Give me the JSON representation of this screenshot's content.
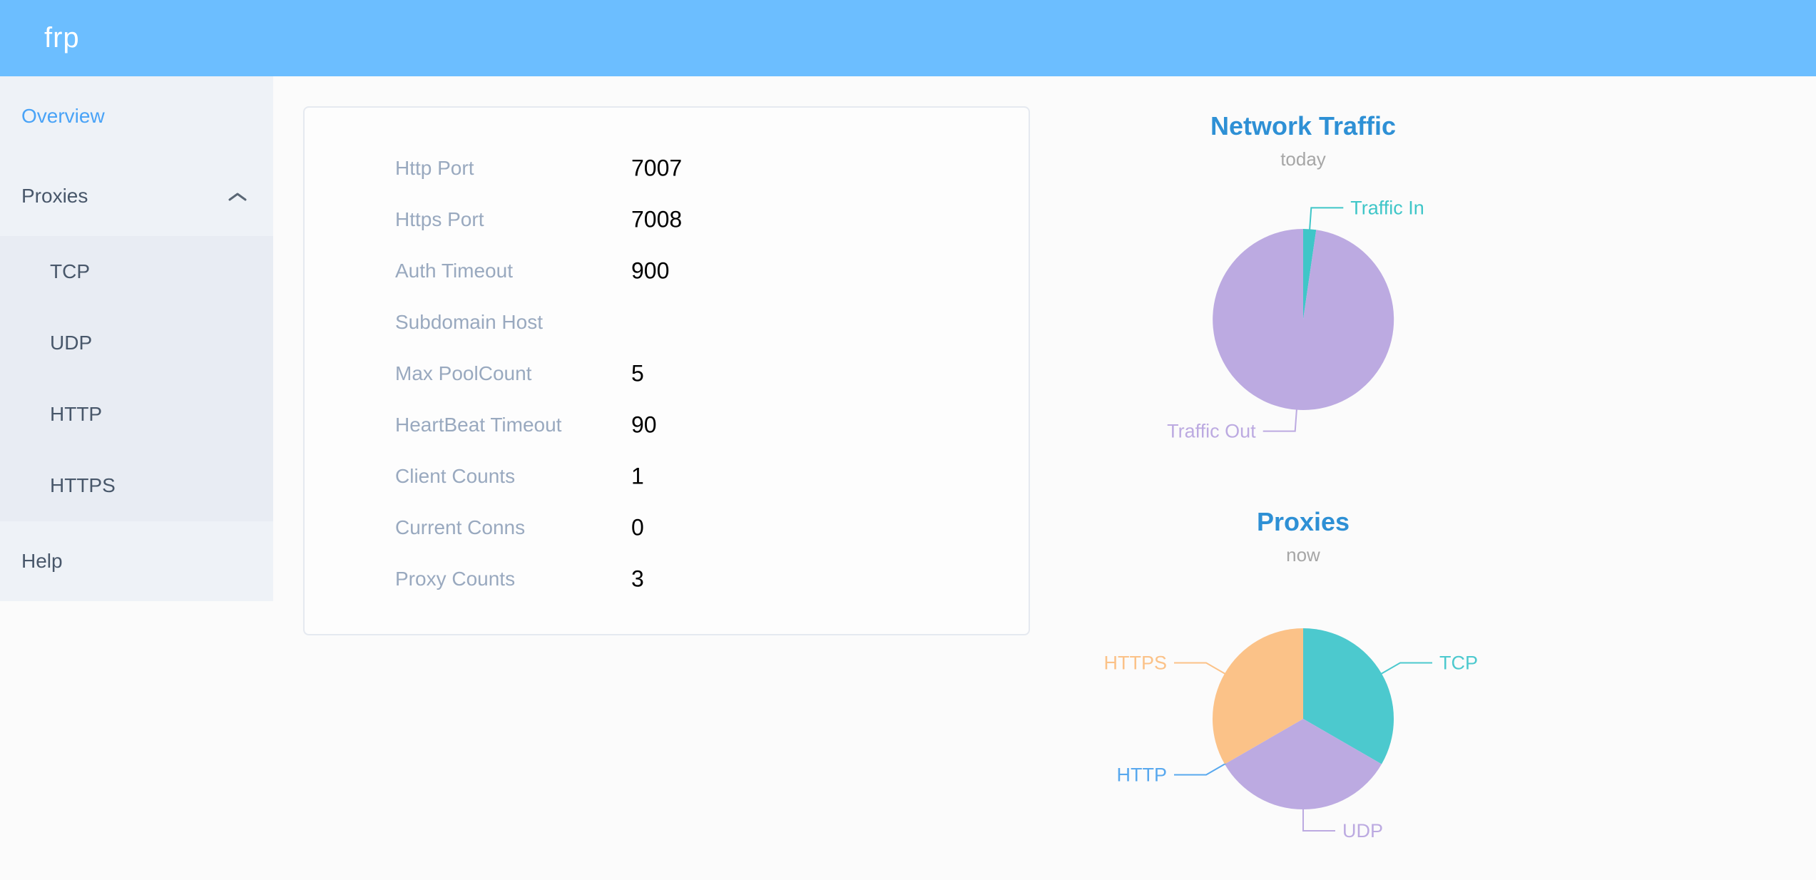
{
  "header": {
    "logo": "frp"
  },
  "icons": {
    "proxies_expand": "chevron-up"
  },
  "sidebar": {
    "overview_label": "Overview",
    "proxies_label": "Proxies",
    "submenu": [
      "TCP",
      "UDP",
      "HTTP",
      "HTTPS"
    ],
    "help_label": "Help"
  },
  "overview": {
    "rows": [
      {
        "label": "Http Port",
        "value": "7007"
      },
      {
        "label": "Https Port",
        "value": "7008"
      },
      {
        "label": "Auth Timeout",
        "value": "900"
      },
      {
        "label": "Subdomain Host",
        "value": ""
      },
      {
        "label": "Max PoolCount",
        "value": "5"
      },
      {
        "label": "HeartBeat Timeout",
        "value": "90"
      },
      {
        "label": "Client Counts",
        "value": "1"
      },
      {
        "label": "Current Conns",
        "value": "0"
      },
      {
        "label": "Proxy Counts",
        "value": "3"
      }
    ]
  },
  "chart_data": [
    {
      "type": "pie",
      "title": "Network Traffic",
      "subtitle": "today",
      "legend_position": "outside-leader-lines",
      "series": [
        {
          "name": "Traffic In",
          "value": 2.3,
          "color": "#3fc6c8"
        },
        {
          "name": "Traffic Out",
          "value": 97.7,
          "color": "#bcaae1"
        }
      ]
    },
    {
      "type": "pie",
      "title": "Proxies",
      "subtitle": "now",
      "legend_position": "outside-leader-lines",
      "series": [
        {
          "name": "TCP",
          "value": 1,
          "color": "#4cc9ce"
        },
        {
          "name": "UDP",
          "value": 1,
          "color": "#bcaae1"
        },
        {
          "name": "HTTP",
          "value": 0,
          "color": "#58a8ee"
        },
        {
          "name": "HTTPS",
          "value": 1,
          "color": "#fbc288"
        }
      ]
    }
  ],
  "colors": {
    "header_bg": "#6cbeff",
    "sidebar_bg": "#eef2f7",
    "submenu_bg": "#e8ecf3",
    "menu_text": "#48576a",
    "menu_active": "#49a3f7",
    "card_label": "#99a9bf",
    "chart_title": "#2e90d5"
  }
}
